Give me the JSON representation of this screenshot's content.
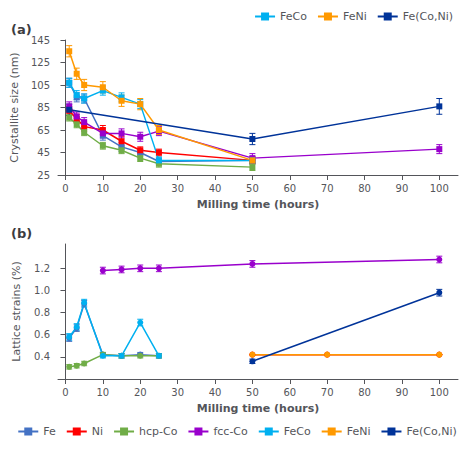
{
  "chart_data": [
    {
      "type": "line",
      "annotations": [
        "(a)"
      ],
      "xlabel": "Milling time (hours)",
      "ylabel": "Crystallite size (nm)",
      "xlim": [
        -2,
        105
      ],
      "ylim": [
        25,
        145
      ],
      "xticks": [
        0,
        10,
        20,
        30,
        40,
        50,
        60,
        70,
        80,
        90,
        100
      ],
      "yticks": [
        25,
        45,
        65,
        85,
        105,
        125,
        145
      ],
      "grid": false,
      "legend": "top",
      "legend_entries": [
        "FeCo",
        "FeNi",
        "Fe(Co,Ni)"
      ],
      "series": [
        {
          "name": "Fe",
          "color": "#4472C4",
          "marker": "square",
          "x": [
            1,
            3,
            5,
            10,
            15,
            20,
            25,
            50
          ],
          "values": [
            107,
            94,
            93,
            60,
            50,
            45,
            37,
            38
          ],
          "yerr": [
            4,
            4,
            4,
            4,
            4,
            3,
            3,
            3
          ]
        },
        {
          "name": "Ni",
          "color": "#FF0000",
          "marker": "square",
          "x": [
            1,
            3,
            5,
            10,
            15,
            20,
            25,
            50
          ],
          "values": [
            82,
            75,
            68,
            65,
            55,
            47,
            45,
            38
          ],
          "yerr": [
            4,
            4,
            4,
            4,
            4,
            3,
            3,
            3
          ]
        },
        {
          "name": "hcp-Co",
          "color": "#70AD47",
          "marker": "square",
          "x": [
            1,
            3,
            5,
            10,
            15,
            20,
            25,
            50
          ],
          "values": [
            76,
            70,
            63,
            51,
            47,
            40,
            35,
            32
          ],
          "yerr": [
            3,
            3,
            3,
            3,
            3,
            3,
            3,
            3
          ]
        },
        {
          "name": "fcc-Co",
          "color": "#9900CC",
          "marker": "square",
          "x": [
            1,
            3,
            5,
            10,
            15,
            20,
            25,
            50,
            100
          ],
          "values": [
            86,
            77,
            72,
            62,
            62,
            59,
            64,
            40,
            48
          ],
          "yerr": [
            4,
            4,
            4,
            4,
            4,
            4,
            4,
            4,
            4
          ]
        },
        {
          "name": "FeCo",
          "color": "#00B0F0",
          "marker": "square",
          "x": [
            1,
            3,
            5,
            10,
            15,
            20,
            25,
            50
          ],
          "values": [
            107,
            96,
            93,
            100,
            94,
            88,
            38,
            38
          ],
          "yerr": [
            4,
            4,
            4,
            4,
            4,
            4,
            3,
            3
          ]
        },
        {
          "name": "FeNi",
          "color": "#FF9900",
          "marker": "square",
          "x": [
            1,
            3,
            5,
            10,
            15,
            20,
            25,
            50
          ],
          "values": [
            135,
            115,
            105,
            103,
            91,
            88,
            65,
            38
          ],
          "yerr": [
            5,
            5,
            5,
            5,
            5,
            5,
            4,
            3
          ]
        },
        {
          "name": "Fe(Co,Ni)",
          "color": "#003399",
          "marker": "square",
          "x": [
            1,
            50,
            100
          ],
          "values": [
            83,
            57,
            86
          ],
          "yerr": [
            5,
            5,
            7
          ]
        }
      ]
    },
    {
      "type": "line",
      "annotations": [
        "(b)"
      ],
      "xlabel": "Milling time (hours)",
      "ylabel": "Lattice strains (%)",
      "xlim": [
        -2,
        105
      ],
      "ylim": [
        0.2,
        1.42
      ],
      "xticks": [
        0,
        10,
        20,
        30,
        40,
        50,
        60,
        70,
        80,
        90,
        100
      ],
      "yticks": [
        0.4,
        0.6,
        0.8,
        {
          "value": 1.0,
          "label": "1.0"
        },
        1.2
      ],
      "grid": false,
      "legend": "bottom",
      "series": [
        {
          "name": "Fe",
          "color": "#4472C4",
          "marker": "circle",
          "x": [
            1,
            3,
            5,
            10,
            15,
            20,
            25
          ],
          "values": [
            0.57,
            0.66,
            0.88,
            0.42,
            0.41,
            0.42,
            0.41
          ],
          "yerr": [
            0.03,
            0.03,
            0.03,
            0.02,
            0.02,
            0.02,
            0.02
          ]
        },
        {
          "name": "Ni",
          "color": "#FF0000",
          "marker": "circle",
          "x": [
            50,
            70,
            100
          ],
          "values": [
            0.42,
            0.42,
            0.42
          ],
          "yerr": [
            0.0,
            0.0,
            0.0
          ]
        },
        {
          "name": "hcp-Co",
          "color": "#70AD47",
          "marker": "circle",
          "x": [
            1,
            3,
            5,
            10,
            15,
            20,
            25
          ],
          "values": [
            0.31,
            0.32,
            0.34,
            0.42,
            0.41,
            0.41,
            0.41
          ],
          "yerr": [
            0.02,
            0.02,
            0.02,
            0.02,
            0.02,
            0.02,
            0.02
          ]
        },
        {
          "name": "fcc-Co",
          "color": "#9900CC",
          "marker": "circle",
          "x": [
            10,
            15,
            20,
            25,
            50,
            100
          ],
          "values": [
            1.18,
            1.19,
            1.2,
            1.2,
            1.24,
            1.28
          ],
          "yerr": [
            0.03,
            0.03,
            0.03,
            0.03,
            0.03,
            0.03
          ]
        },
        {
          "name": "FeCo",
          "color": "#00B0F0",
          "marker": "circle",
          "x": [
            1,
            3,
            5,
            10,
            15,
            20,
            25
          ],
          "values": [
            0.58,
            0.67,
            0.89,
            0.41,
            0.41,
            0.71,
            0.41
          ],
          "yerr": [
            0.03,
            0.03,
            0.03,
            0.02,
            0.02,
            0.03,
            0.02
          ]
        },
        {
          "name": "FeNi",
          "color": "#FF9900",
          "marker": "circle",
          "x": [
            50,
            70,
            100
          ],
          "values": [
            0.42,
            0.42,
            0.42
          ],
          "yerr": [
            0.0,
            0.0,
            0.0
          ]
        },
        {
          "name": "Fe(Co,Ni)",
          "color": "#003399",
          "marker": "circle",
          "x": [
            50,
            100
          ],
          "values": [
            0.36,
            0.98
          ],
          "yerr": [
            0.02,
            0.03
          ]
        }
      ]
    }
  ]
}
